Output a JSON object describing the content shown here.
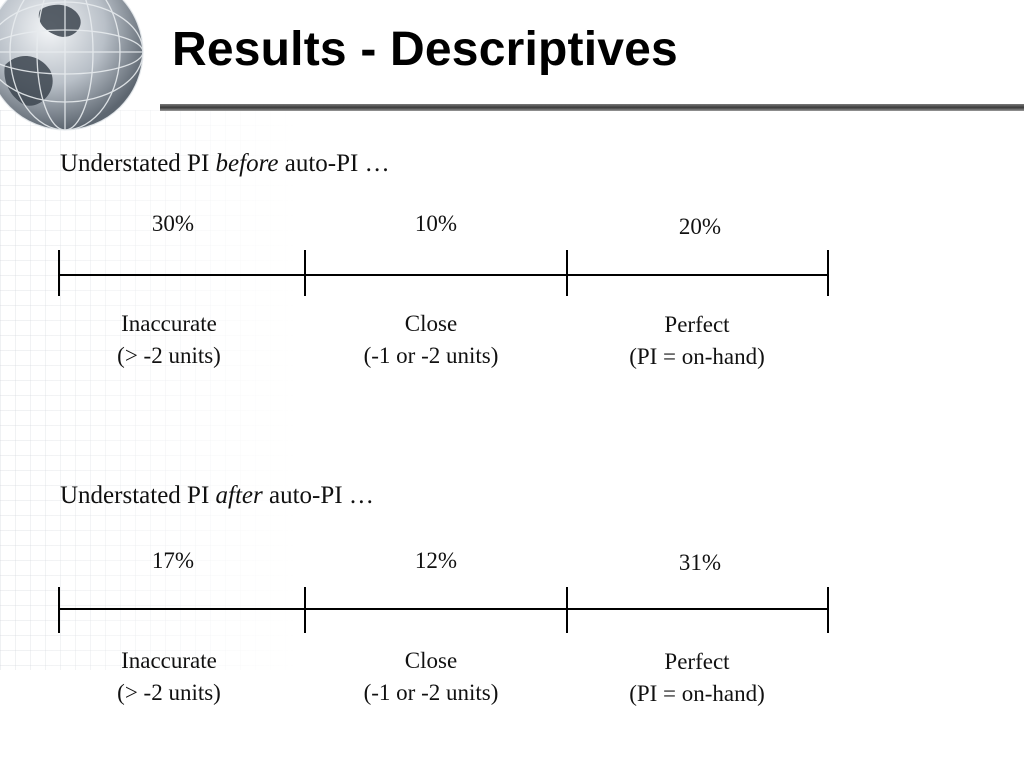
{
  "slide": {
    "title": "Results - Descriptives"
  },
  "sections": [
    {
      "heading_prefix": "Understated PI ",
      "heading_emphasis": "before",
      "heading_suffix": " auto-PI …",
      "percents": [
        "30%",
        "10%",
        "20%"
      ],
      "labels": [
        {
          "line1": "Inaccurate",
          "line2": "(> -2 units)"
        },
        {
          "line1": "Close",
          "line2": "(-1 or -2 units)"
        },
        {
          "line1": "Perfect",
          "line2": "(PI = on-hand)"
        }
      ]
    },
    {
      "heading_prefix": "Understated PI ",
      "heading_emphasis": "after",
      "heading_suffix": " auto-PI …",
      "percents": [
        "17%",
        "12%",
        "31%"
      ],
      "labels": [
        {
          "line1": "Inaccurate",
          "line2": "(> -2 units)"
        },
        {
          "line1": "Close",
          "line2": "(-1 or -2 units)"
        },
        {
          "line1": "Perfect",
          "line2": "(PI = on-hand)"
        }
      ]
    }
  ]
}
